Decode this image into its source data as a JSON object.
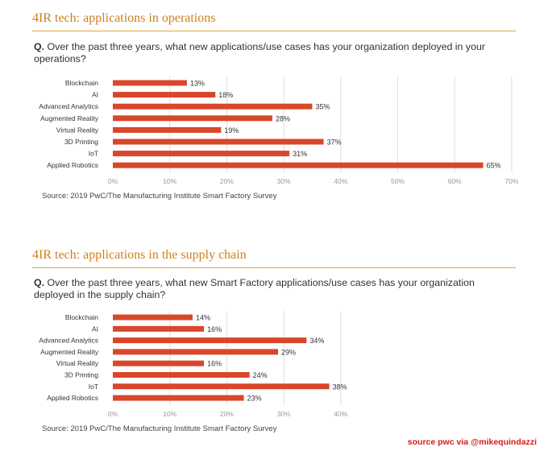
{
  "colors": {
    "bar": "#d9472a",
    "accent": "#d07f1c",
    "grid": "#dddddd",
    "credit": "#d11b1b"
  },
  "sections": [
    {
      "title": "4IR tech: applications in operations",
      "question_prefix": "Q.",
      "question": "Over the past three years, what new applications/use cases has your organization deployed in your operations?",
      "source": "Source: 2019 PwC/The Manufacturing Institute Smart Factory Survey"
    },
    {
      "title": "4IR tech: applications in the supply chain",
      "question_prefix": "Q.",
      "question": "Over the past three years, what new Smart Factory applications/use cases has your organization deployed in the supply chain?",
      "source": "Source: 2019 PwC/The Manufacturing Institute Smart Factory Survey"
    }
  ],
  "credit": "source pwc via @mikequindazzi",
  "chart_data": [
    {
      "type": "bar",
      "orientation": "horizontal",
      "title": "4IR tech: applications in operations",
      "categories": [
        "Blockchain",
        "AI",
        "Advanced Analytics",
        "Augmented Reality",
        "Virtual Reality",
        "3D Printing",
        "IoT",
        "Applied Robotics"
      ],
      "values": [
        13,
        18,
        35,
        28,
        19,
        37,
        31,
        65
      ],
      "value_labels": [
        "13%",
        "18%",
        "35%",
        "28%",
        "19%",
        "37%",
        "31%",
        "65%"
      ],
      "xlim": [
        0,
        70
      ],
      "ticks": [
        "0%",
        "10%",
        "20%",
        "30%",
        "40%",
        "50%",
        "60%",
        "70%"
      ],
      "grid": true
    },
    {
      "type": "bar",
      "orientation": "horizontal",
      "title": "4IR tech: applications in the supply chain",
      "categories": [
        "Blockchain",
        "AI",
        "Advanced Analytics",
        "Augmented Reality",
        "Virtual Reality",
        "3D Printing",
        "IoT",
        "Applied Robotics"
      ],
      "values": [
        14,
        16,
        34,
        29,
        16,
        24,
        38,
        23
      ],
      "value_labels": [
        "14%",
        "16%",
        "34%",
        "29%",
        "16%",
        "24%",
        "38%",
        "23%"
      ],
      "xlim": [
        0,
        40
      ],
      "ticks": [
        "0%",
        "10%",
        "20%",
        "30%",
        "40%"
      ],
      "grid": true
    }
  ]
}
